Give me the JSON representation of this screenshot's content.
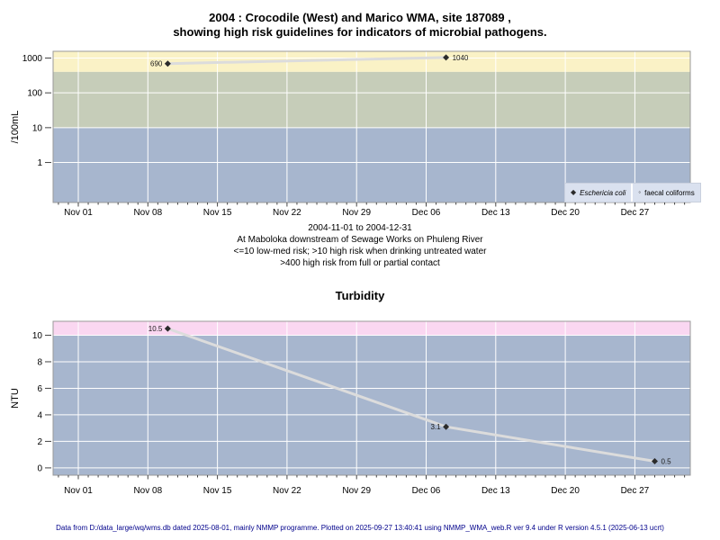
{
  "title": {
    "line1": "2004 : Crocodile (West) and Marico WMA, site 187089 ,",
    "line2": "showing high risk guidelines for indicators of microbial pathogens."
  },
  "caption": {
    "lines": [
      "2004-11-01 to 2004-12-31",
      "At Maboloka downstream of Sewage Works on Phuleng River",
      "<=10 low-med risk; >10 high risk when drinking untreated water",
      ">400 high risk from full or partial contact"
    ]
  },
  "footer": "Data from D:/data_large/wq/wms.db dated 2025-08-01, mainly NMMP programme. Plotted on 2025-09-27 13:40:41 using NMMP_WMA_web.R ver 9.4 under R version 4.5.1 (2025-06-13 ucrt)",
  "colors": {
    "band_yellow": "#faf2c6",
    "band_green": "#c6cdb9",
    "band_blue": "#a7b6ce",
    "band_pink": "#fad7f1",
    "grid": "#ffffff",
    "line": "#dcdcdc",
    "marker": "#2b2b2b",
    "plot_border": "#999999",
    "tick": "#444444",
    "legend_bg": "#dae1ef",
    "footer_text": "#00008b"
  },
  "x_axis": {
    "start_date": "2004-11-01",
    "major_tick_labels": [
      "Nov 01",
      "Nov 08",
      "Nov 15",
      "Nov 22",
      "Nov 29",
      "Dec 06",
      "Dec 13",
      "Dec 20",
      "Dec 27"
    ],
    "major_tick_step_days": 7,
    "minor_tick_step_days": 1,
    "range_days": [
      -2.5,
      61.5
    ]
  },
  "chart_data": [
    {
      "type": "line",
      "title": "",
      "ylabel": "/100mL",
      "yscale": "log",
      "ylim": [
        0.071,
        1560
      ],
      "yticks": [
        1,
        10,
        100,
        1000
      ],
      "ytick_labels": [
        "1",
        "10",
        "100",
        "1000"
      ],
      "grid": true,
      "bands": [
        {
          "from": 400,
          "to": null,
          "color_key": "band_yellow"
        },
        {
          "from": 10,
          "to": 400,
          "color_key": "band_green"
        },
        {
          "from": null,
          "to": 10,
          "color_key": "band_blue"
        }
      ],
      "legend": {
        "position": "bottom-right",
        "items": [
          {
            "label": "Eschericia coli",
            "marker": "filled-diamond",
            "italic": true
          },
          {
            "label": "faecal coliforms",
            "marker": "open-circle",
            "italic": false
          }
        ]
      },
      "series": [
        {
          "name": "Eschericia coli",
          "marker": "filled-diamond",
          "points": [
            {
              "date": "2004-11-10",
              "value": 690,
              "label": "690",
              "label_side": "left"
            },
            {
              "date": "2004-12-08",
              "value": 1040,
              "label": "1040",
              "label_side": "right"
            }
          ]
        },
        {
          "name": "faecal coliforms",
          "marker": "open-circle",
          "points": []
        }
      ]
    },
    {
      "type": "line",
      "title": "Turbidity",
      "ylabel": "NTU",
      "yscale": "linear",
      "ylim": [
        -0.55,
        11.05
      ],
      "yticks": [
        0,
        2,
        4,
        6,
        8,
        10
      ],
      "ytick_labels": [
        "0",
        "2",
        "4",
        "6",
        "8",
        "10"
      ],
      "grid": true,
      "bands": [
        {
          "from": 10,
          "to": null,
          "color_key": "band_pink"
        },
        {
          "from": null,
          "to": 10,
          "color_key": "band_blue"
        }
      ],
      "series": [
        {
          "name": "Turbidity",
          "marker": "filled-diamond",
          "points": [
            {
              "date": "2004-11-10",
              "value": 10.5,
              "label": "10.5",
              "label_side": "left"
            },
            {
              "date": "2004-12-08",
              "value": 3.1,
              "label": "3.1",
              "label_side": "left"
            },
            {
              "date": "2004-12-29",
              "value": 0.5,
              "label": "0.5",
              "label_side": "right"
            }
          ]
        }
      ]
    }
  ]
}
